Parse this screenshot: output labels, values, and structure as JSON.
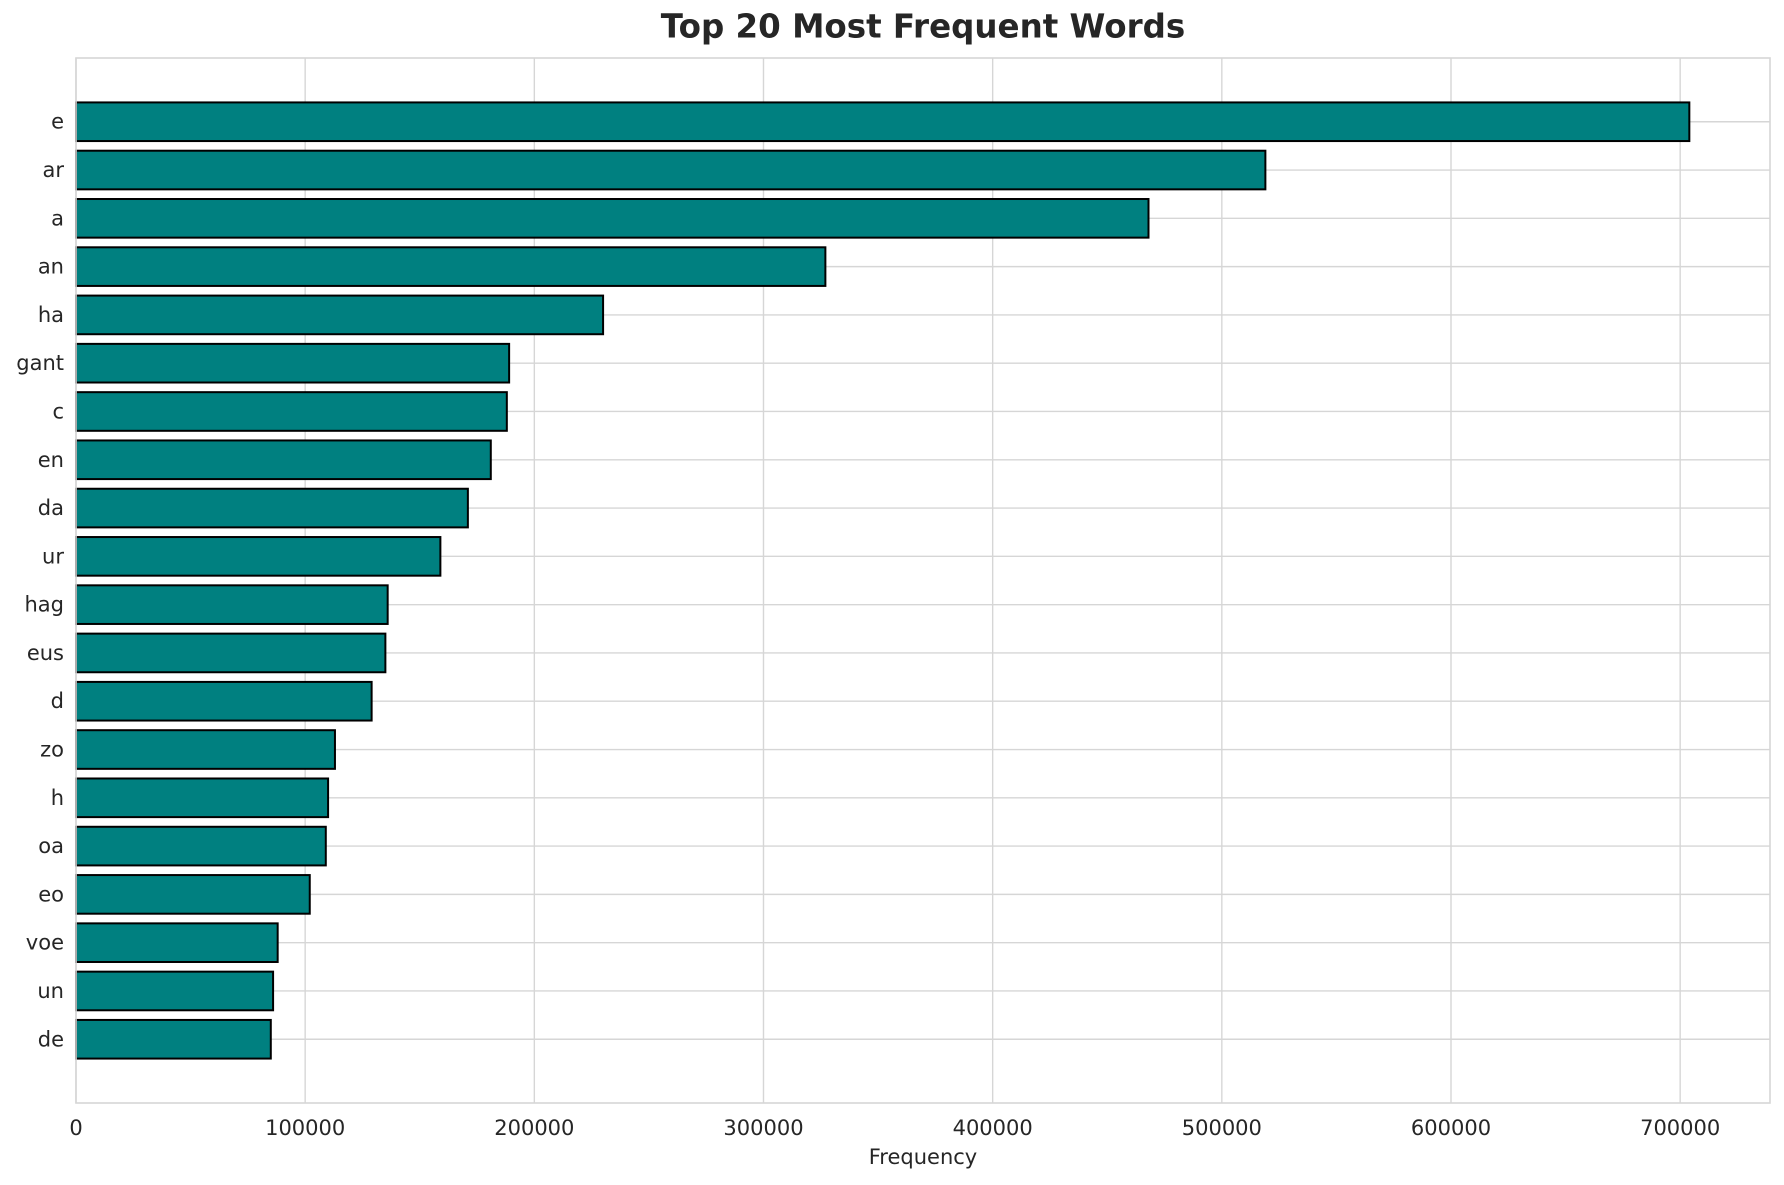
{
  "chart_data": {
    "type": "bar",
    "orientation": "horizontal",
    "title": "Top 20 Most Frequent Words",
    "xlabel": "Frequency",
    "ylabel": "",
    "categories": [
      "e",
      "ar",
      "a",
      "an",
      "ha",
      "gant",
      "c",
      "en",
      "da",
      "ur",
      "hag",
      "eus",
      "d",
      "zo",
      "h",
      "oa",
      "eo",
      "voe",
      "un",
      "de"
    ],
    "values": [
      704000,
      519000,
      468000,
      327000,
      230000,
      189000,
      188000,
      181000,
      171000,
      159000,
      136000,
      135000,
      129000,
      113000,
      110000,
      109000,
      102000,
      88000,
      86000,
      85000
    ],
    "xlim": [
      0,
      739200
    ],
    "xticks": [
      0,
      100000,
      200000,
      300000,
      400000,
      500000,
      600000,
      700000
    ],
    "grid": true,
    "legend": false,
    "bar_color": "#008080",
    "bar_edge_color": "#000000",
    "grid_color": "#d6d6d6",
    "text_color": "#262626"
  }
}
